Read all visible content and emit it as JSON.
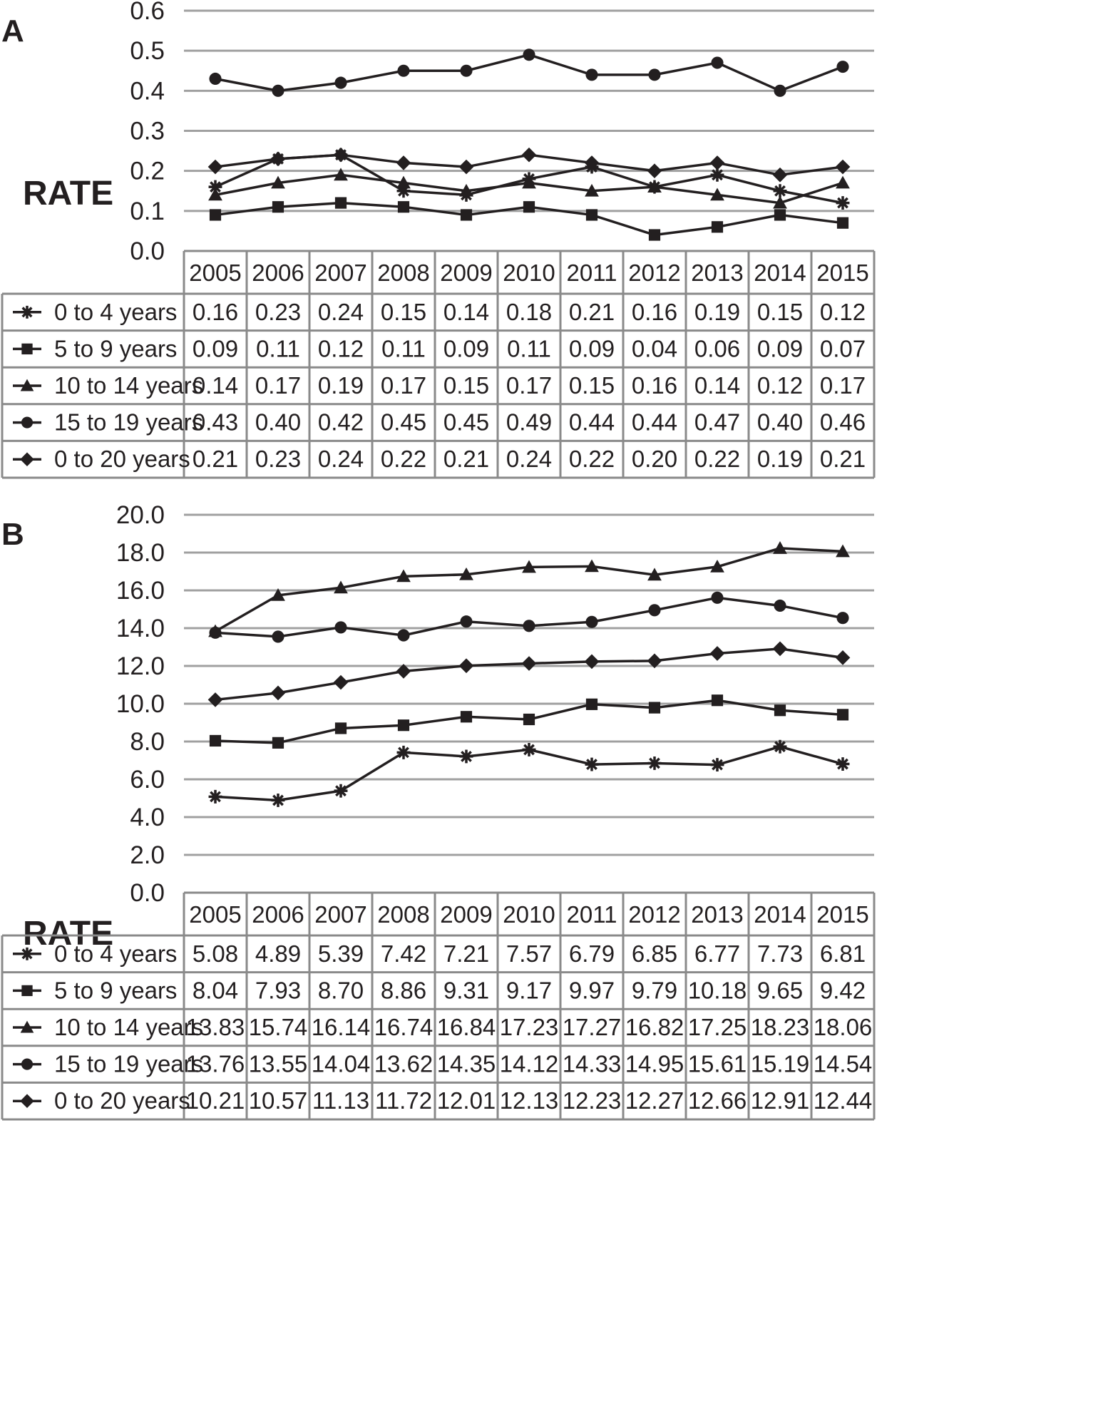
{
  "chart_data": [
    {
      "type": "line",
      "panel": "A",
      "ylabel": "RATE",
      "ylim": [
        0,
        0.6
      ],
      "yticks": [
        "0.0",
        "0.1",
        "0.2",
        "0.3",
        "0.4",
        "0.5",
        "0.6"
      ],
      "categories": [
        "2005",
        "2006",
        "2007",
        "2008",
        "2009",
        "2010",
        "2011",
        "2012",
        "2013",
        "2014",
        "2015"
      ],
      "series": [
        {
          "name": "0 to 4 years",
          "marker": "star",
          "values": [
            0.16,
            0.23,
            0.24,
            0.15,
            0.14,
            0.18,
            0.21,
            0.16,
            0.19,
            0.15,
            0.12
          ],
          "labels": [
            "0.16",
            "0.23",
            "0.24",
            "0.15",
            "0.14",
            "0.18",
            "0.21",
            "0.16",
            "0.19",
            "0.15",
            "0.12"
          ]
        },
        {
          "name": "5 to 9 years",
          "marker": "square",
          "values": [
            0.09,
            0.11,
            0.12,
            0.11,
            0.09,
            0.11,
            0.09,
            0.04,
            0.06,
            0.09,
            0.07
          ],
          "labels": [
            "0.09",
            "0.11",
            "0.12",
            "0.11",
            "0.09",
            "0.11",
            "0.09",
            "0.04",
            "0.06",
            "0.09",
            "0.07"
          ]
        },
        {
          "name": "10 to 14 years",
          "marker": "triangle",
          "values": [
            0.14,
            0.17,
            0.19,
            0.17,
            0.15,
            0.17,
            0.15,
            0.16,
            0.14,
            0.12,
            0.17
          ],
          "labels": [
            "0.14",
            "0.17",
            "0.19",
            "0.17",
            "0.15",
            "0.17",
            "0.15",
            "0.16",
            "0.14",
            "0.12",
            "0.17"
          ]
        },
        {
          "name": "15 to 19 years",
          "marker": "circle",
          "values": [
            0.43,
            0.4,
            0.42,
            0.45,
            0.45,
            0.49,
            0.44,
            0.44,
            0.47,
            0.4,
            0.46
          ],
          "labels": [
            "0.43",
            "0.40",
            "0.42",
            "0.45",
            "0.45",
            "0.49",
            "0.44",
            "0.44",
            "0.47",
            "0.40",
            "0.46"
          ]
        },
        {
          "name": "0 to 20 years",
          "marker": "diamond",
          "values": [
            0.21,
            0.23,
            0.24,
            0.22,
            0.21,
            0.24,
            0.22,
            0.2,
            0.22,
            0.19,
            0.21
          ],
          "labels": [
            "0.21",
            "0.23",
            "0.24",
            "0.22",
            "0.21",
            "0.24",
            "0.22",
            "0.20",
            "0.22",
            "0.19",
            "0.21"
          ]
        }
      ]
    },
    {
      "type": "line",
      "panel": "B",
      "ylabel": "RATE",
      "ylim": [
        0,
        20
      ],
      "yticks": [
        "0.0",
        "2.0",
        "4.0",
        "6.0",
        "8.0",
        "10.0",
        "12.0",
        "14.0",
        "16.0",
        "18.0",
        "20.0"
      ],
      "categories": [
        "2005",
        "2006",
        "2007",
        "2008",
        "2009",
        "2010",
        "2011",
        "2012",
        "2013",
        "2014",
        "2015"
      ],
      "series": [
        {
          "name": "0 to 4 years",
          "marker": "star",
          "values": [
            5.08,
            4.89,
            5.39,
            7.42,
            7.21,
            7.57,
            6.79,
            6.85,
            6.77,
            7.73,
            6.81
          ],
          "labels": [
            "5.08",
            "4.89",
            "5.39",
            "7.42",
            "7.21",
            "7.57",
            "6.79",
            "6.85",
            "6.77",
            "7.73",
            "6.81"
          ]
        },
        {
          "name": "5 to 9 years",
          "marker": "square",
          "values": [
            8.04,
            7.93,
            8.7,
            8.86,
            9.31,
            9.17,
            9.97,
            9.79,
            10.18,
            9.65,
            9.42
          ],
          "labels": [
            "8.04",
            "7.93",
            "8.70",
            "8.86",
            "9.31",
            "9.17",
            "9.97",
            "9.79",
            "10.18",
            "9.65",
            "9.42"
          ]
        },
        {
          "name": "10 to 14 years",
          "marker": "triangle",
          "values": [
            13.83,
            15.74,
            16.14,
            16.74,
            16.84,
            17.23,
            17.27,
            16.82,
            17.25,
            18.23,
            18.06
          ],
          "labels": [
            "13.83",
            "15.74",
            "16.14",
            "16.74",
            "16.84",
            "17.23",
            "17.27",
            "16.82",
            "17.25",
            "18.23",
            "18.06"
          ]
        },
        {
          "name": "15 to 19 years",
          "marker": "circle",
          "values": [
            13.76,
            13.55,
            14.04,
            13.62,
            14.35,
            14.12,
            14.33,
            14.95,
            15.61,
            15.19,
            14.54
          ],
          "labels": [
            "13.76",
            "13.55",
            "14.04",
            "13.62",
            "14.35",
            "14.12",
            "14.33",
            "14.95",
            "15.61",
            "15.19",
            "14.54"
          ]
        },
        {
          "name": "0 to 20 years",
          "marker": "diamond",
          "values": [
            10.21,
            10.57,
            11.13,
            11.72,
            12.01,
            12.13,
            12.23,
            12.27,
            12.66,
            12.91,
            12.44
          ],
          "labels": [
            "10.21",
            "10.57",
            "11.13",
            "11.72",
            "12.01",
            "12.13",
            "12.23",
            "12.27",
            "12.66",
            "12.91",
            "12.44"
          ]
        }
      ]
    }
  ]
}
